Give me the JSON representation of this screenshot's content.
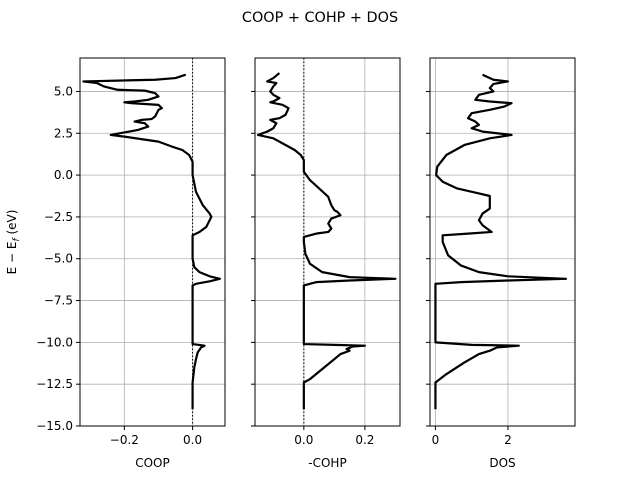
{
  "figure": {
    "title": "COOP + COHP + DOS",
    "ylabel": "E − E_f (eV)",
    "ylabel_main": "E − E",
    "ylabel_sub": "f",
    "ylabel_tail": " (eV)"
  },
  "chart_data": [
    {
      "type": "line",
      "xlabel": "COOP",
      "ylabel": "E − E_f (eV)",
      "xlim": [
        -0.33,
        0.095
      ],
      "ylim": [
        -15.0,
        7.0
      ],
      "xticks": [
        -0.2,
        0.0
      ],
      "xtick_labels": [
        "−0.2",
        "0.0"
      ],
      "yticks": [
        -15.0,
        -12.5,
        -10.0,
        -7.5,
        -5.0,
        -2.5,
        0.0,
        2.5,
        5.0
      ],
      "ytick_labels": [
        "−15.0",
        "−12.5",
        "−10.0",
        "−7.5",
        "−5.0",
        "−2.5",
        "0.0",
        "2.5",
        "5.0"
      ],
      "vline_x": 0.0,
      "grid": true,
      "series": [
        {
          "color": "#000000",
          "points": [
            [
              -0.02,
              6.0
            ],
            [
              -0.05,
              5.8
            ],
            [
              -0.11,
              5.7
            ],
            [
              -0.32,
              5.6
            ],
            [
              -0.28,
              5.5
            ],
            [
              -0.26,
              5.3
            ],
            [
              -0.22,
              5.1
            ],
            [
              -0.14,
              5.05
            ],
            [
              -0.11,
              4.9
            ],
            [
              -0.1,
              4.7
            ],
            [
              -0.13,
              4.5
            ],
            [
              -0.17,
              4.4
            ],
            [
              -0.2,
              4.35
            ],
            [
              -0.18,
              4.3
            ],
            [
              -0.1,
              4.2
            ],
            [
              -0.09,
              4.0
            ],
            [
              -0.1,
              3.9
            ],
            [
              -0.11,
              3.5
            ],
            [
              -0.12,
              3.35
            ],
            [
              -0.15,
              3.3
            ],
            [
              -0.17,
              3.2
            ],
            [
              -0.14,
              3.1
            ],
            [
              -0.13,
              2.9
            ],
            [
              -0.16,
              2.7
            ],
            [
              -0.2,
              2.55
            ],
            [
              -0.24,
              2.4
            ],
            [
              -0.2,
              2.3
            ],
            [
              -0.15,
              2.15
            ],
            [
              -0.1,
              2.0
            ],
            [
              -0.06,
              1.7
            ],
            [
              -0.03,
              1.5
            ],
            [
              -0.01,
              1.2
            ],
            [
              0.0,
              0.8
            ],
            [
              0.0,
              0.0
            ],
            [
              0.01,
              -1.0
            ],
            [
              0.03,
              -1.8
            ],
            [
              0.05,
              -2.3
            ],
            [
              0.055,
              -2.5
            ],
            [
              0.05,
              -2.7
            ],
            [
              0.04,
              -3.1
            ],
            [
              0.02,
              -3.4
            ],
            [
              0.0,
              -3.6
            ],
            [
              0.0,
              -5.0
            ],
            [
              0.005,
              -5.5
            ],
            [
              0.02,
              -5.8
            ],
            [
              0.05,
              -6.05
            ],
            [
              0.08,
              -6.2
            ],
            [
              0.05,
              -6.35
            ],
            [
              0.01,
              -6.5
            ],
            [
              0.0,
              -6.6
            ],
            [
              0.0,
              -10.1
            ],
            [
              0.035,
              -10.2
            ],
            [
              0.025,
              -10.3
            ],
            [
              0.015,
              -10.6
            ],
            [
              0.01,
              -11.0
            ],
            [
              0.005,
              -11.5
            ],
            [
              0.0,
              -12.4
            ],
            [
              0.0,
              -14.0
            ]
          ]
        }
      ]
    },
    {
      "type": "line",
      "xlabel": "-COHP",
      "xlim": [
        -0.16,
        0.315
      ],
      "ylim": [
        -15.0,
        7.0
      ],
      "xticks": [
        0.0,
        0.2
      ],
      "xtick_labels": [
        "0.0",
        "0.2"
      ],
      "vline_x": 0.0,
      "grid": true,
      "series": [
        {
          "color": "#000000",
          "points": [
            [
              -0.08,
              6.1
            ],
            [
              -0.1,
              5.8
            ],
            [
              -0.12,
              5.6
            ],
            [
              -0.09,
              5.5
            ],
            [
              -0.1,
              5.3
            ],
            [
              -0.11,
              5.0
            ],
            [
              -0.1,
              4.8
            ],
            [
              -0.08,
              4.6
            ],
            [
              -0.1,
              4.4
            ],
            [
              -0.11,
              4.35
            ],
            [
              -0.07,
              4.2
            ],
            [
              -0.05,
              4.0
            ],
            [
              -0.06,
              3.6
            ],
            [
              -0.08,
              3.4
            ],
            [
              -0.11,
              3.3
            ],
            [
              -0.09,
              3.1
            ],
            [
              -0.1,
              2.8
            ],
            [
              -0.12,
              2.6
            ],
            [
              -0.15,
              2.4
            ],
            [
              -0.1,
              2.2
            ],
            [
              -0.06,
              1.8
            ],
            [
              -0.03,
              1.5
            ],
            [
              -0.01,
              1.2
            ],
            [
              0.0,
              0.9
            ],
            [
              0.0,
              0.2
            ],
            [
              0.02,
              -0.3
            ],
            [
              0.05,
              -0.8
            ],
            [
              0.08,
              -1.3
            ],
            [
              0.09,
              -1.8
            ],
            [
              0.1,
              -2.1
            ],
            [
              0.11,
              -2.2
            ],
            [
              0.12,
              -2.4
            ],
            [
              0.09,
              -2.6
            ],
            [
              0.08,
              -2.9
            ],
            [
              0.09,
              -3.2
            ],
            [
              0.08,
              -3.4
            ],
            [
              0.04,
              -3.5
            ],
            [
              0.0,
              -3.7
            ],
            [
              0.0,
              -4.0
            ],
            [
              0.005,
              -4.7
            ],
            [
              0.02,
              -5.3
            ],
            [
              0.06,
              -5.8
            ],
            [
              0.15,
              -6.1
            ],
            [
              0.3,
              -6.2
            ],
            [
              0.15,
              -6.3
            ],
            [
              0.04,
              -6.4
            ],
            [
              0.0,
              -6.6
            ],
            [
              0.0,
              -10.1
            ],
            [
              0.1,
              -10.15
            ],
            [
              0.2,
              -10.2
            ],
            [
              0.16,
              -10.25
            ],
            [
              0.14,
              -10.4
            ],
            [
              0.15,
              -10.5
            ],
            [
              0.12,
              -10.7
            ],
            [
              0.1,
              -11.0
            ],
            [
              0.06,
              -11.6
            ],
            [
              0.02,
              -12.2
            ],
            [
              0.0,
              -12.4
            ],
            [
              0.0,
              -14.0
            ]
          ]
        }
      ]
    },
    {
      "type": "line",
      "xlabel": "DOS",
      "xlim": [
        -0.15,
        3.85
      ],
      "ylim": [
        -15.0,
        7.0
      ],
      "xticks": [
        0.0,
        2.0
      ],
      "xtick_labels": [
        "0",
        "2"
      ],
      "grid": true,
      "series": [
        {
          "color": "#000000",
          "points": [
            [
              1.3,
              6.0
            ],
            [
              1.6,
              5.7
            ],
            [
              2.0,
              5.6
            ],
            [
              1.6,
              5.45
            ],
            [
              1.5,
              5.2
            ],
            [
              1.6,
              5.0
            ],
            [
              1.2,
              4.8
            ],
            [
              1.1,
              4.5
            ],
            [
              1.5,
              4.4
            ],
            [
              2.1,
              4.3
            ],
            [
              1.9,
              4.1
            ],
            [
              1.5,
              3.9
            ],
            [
              1.0,
              3.7
            ],
            [
              0.9,
              3.4
            ],
            [
              1.1,
              3.2
            ],
            [
              1.2,
              3.0
            ],
            [
              1.0,
              2.8
            ],
            [
              1.3,
              2.6
            ],
            [
              2.1,
              2.4
            ],
            [
              1.5,
              2.2
            ],
            [
              0.8,
              1.8
            ],
            [
              0.3,
              1.2
            ],
            [
              0.05,
              0.5
            ],
            [
              0.02,
              0.0
            ],
            [
              0.2,
              -0.4
            ],
            [
              0.6,
              -0.8
            ],
            [
              1.2,
              -1.1
            ],
            [
              1.5,
              -1.25
            ],
            [
              1.5,
              -2.0
            ],
            [
              1.3,
              -2.3
            ],
            [
              1.2,
              -2.7
            ],
            [
              1.3,
              -3.0
            ],
            [
              1.55,
              -3.4
            ],
            [
              0.9,
              -3.5
            ],
            [
              0.2,
              -3.6
            ],
            [
              0.2,
              -4.0
            ],
            [
              0.35,
              -4.8
            ],
            [
              0.7,
              -5.4
            ],
            [
              1.2,
              -5.8
            ],
            [
              2.0,
              -6.05
            ],
            [
              3.6,
              -6.2
            ],
            [
              2.0,
              -6.3
            ],
            [
              0.7,
              -6.4
            ],
            [
              0.0,
              -6.5
            ],
            [
              0.0,
              -10.0
            ],
            [
              1.0,
              -10.15
            ],
            [
              2.3,
              -10.2
            ],
            [
              1.7,
              -10.3
            ],
            [
              1.5,
              -10.5
            ],
            [
              1.2,
              -10.7
            ],
            [
              0.8,
              -11.2
            ],
            [
              0.3,
              -11.9
            ],
            [
              0.0,
              -12.4
            ],
            [
              0.0,
              -14.0
            ]
          ]
        }
      ]
    }
  ]
}
